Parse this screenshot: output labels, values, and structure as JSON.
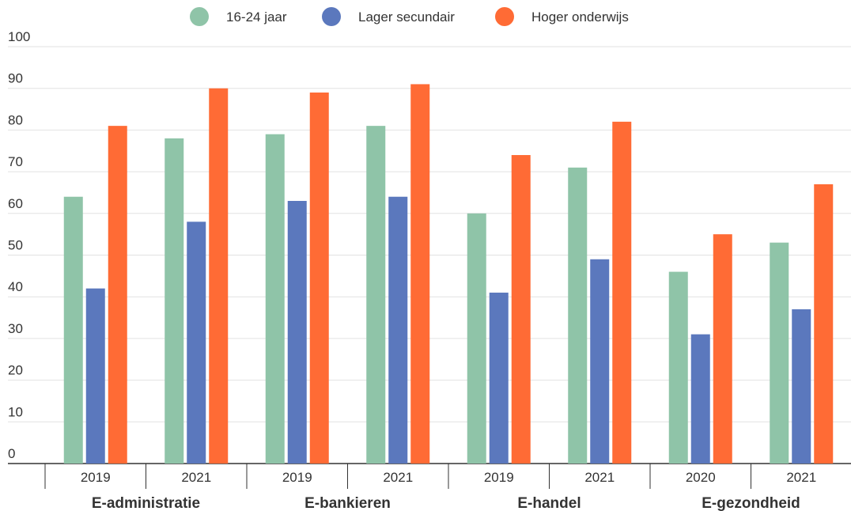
{
  "chart_data": {
    "type": "bar",
    "legend_position": "top-center",
    "grid": true,
    "ylim": [
      0,
      100
    ],
    "yticks": [
      "0",
      "10",
      "20",
      "30",
      "40",
      "50",
      "60",
      "70",
      "80",
      "90",
      "100"
    ],
    "groups": [
      {
        "label": "E-administratie",
        "years": [
          "2019",
          "2021"
        ]
      },
      {
        "label": "E-bankieren",
        "years": [
          "2019",
          "2021"
        ]
      },
      {
        "label": "E-handel",
        "years": [
          "2019",
          "2021"
        ]
      },
      {
        "label": "E-gezondheid",
        "years": [
          "2020",
          "2021"
        ]
      }
    ],
    "categories": [
      "2019",
      "2021",
      "2019",
      "2021",
      "2019",
      "2021",
      "2020",
      "2021"
    ],
    "series": [
      {
        "name": "16-24 jaar",
        "color": "#8fc4a8",
        "values": [
          64,
          78,
          79,
          81,
          60,
          71,
          46,
          53
        ]
      },
      {
        "name": "Lager secundair",
        "color": "#5b78bd",
        "values": [
          42,
          58,
          63,
          64,
          41,
          49,
          31,
          37
        ]
      },
      {
        "name": "Hoger onderwijs",
        "color": "#ff6b35",
        "values": [
          81,
          90,
          89,
          91,
          74,
          82,
          55,
          67
        ]
      }
    ]
  }
}
